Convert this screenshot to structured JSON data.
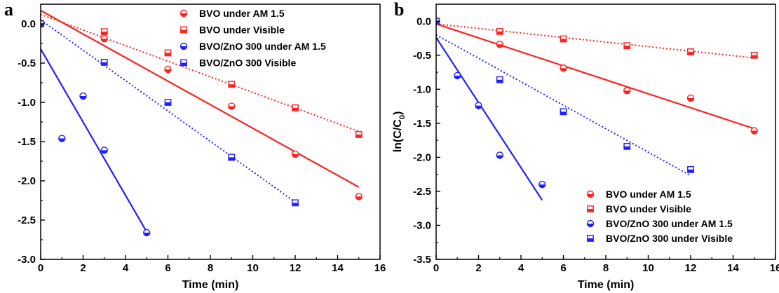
{
  "chart_data": [
    {
      "type": "scatter",
      "panel_label": "a",
      "xlabel": "Time (min)",
      "ylabel": "",
      "xlim": [
        0,
        16
      ],
      "ylim": [
        -3.0,
        0.25
      ],
      "xticks": [
        "0",
        "2",
        "4",
        "6",
        "8",
        "10",
        "12",
        "14",
        "16"
      ],
      "yticks": [
        "0.0",
        "-0.5",
        "-1.0",
        "-1.5",
        "-2.0",
        "-2.5",
        "-3.0"
      ],
      "legend_position": "top-right",
      "series": [
        {
          "name": "BVO under AM 1.5",
          "color": "#ff2020",
          "marker": "circle-half",
          "fit": "solid",
          "x": [
            0,
            3,
            6,
            9,
            12,
            15
          ],
          "y": [
            0.0,
            -0.19,
            -0.58,
            -1.05,
            -1.66,
            -2.2
          ],
          "fit_line": [
            [
              0,
              0.17
            ],
            [
              15,
              -2.08
            ]
          ]
        },
        {
          "name": "BVO under Visible",
          "color": "#ff2020",
          "marker": "square-half",
          "fit": "dotted",
          "x": [
            0,
            3,
            6,
            9,
            12,
            15
          ],
          "y": [
            0.0,
            -0.1,
            -0.37,
            -0.77,
            -1.07,
            -1.41
          ],
          "fit_line": [
            [
              0,
              0.12
            ],
            [
              15,
              -1.37
            ]
          ]
        },
        {
          "name": "BVO/ZnO 300 under AM 1.5",
          "color": "#2020ff",
          "marker": "circle-half",
          "fit": "solid",
          "x": [
            0,
            1,
            2,
            3,
            5
          ],
          "y": [
            0.0,
            -1.46,
            -0.92,
            -1.61,
            -2.66
          ],
          "fit_line": [
            [
              0,
              -0.32
            ],
            [
              5,
              -2.65
            ]
          ]
        },
        {
          "name": "BVO/ZnO 300 Visible",
          "color": "#2020ff",
          "marker": "square-half",
          "fit": "dotted",
          "x": [
            0,
            3,
            6,
            9,
            12
          ],
          "y": [
            0.0,
            -0.49,
            -1.0,
            -1.7,
            -2.28
          ],
          "fit_line": [
            [
              0,
              0.05
            ],
            [
              12,
              -2.27
            ]
          ]
        }
      ]
    },
    {
      "type": "scatter",
      "panel_label": "b",
      "xlabel": "Time (min)",
      "ylabel": "ln(C/C",
      "ylabel_sub": "0",
      "ylabel_end": ")",
      "xlim": [
        0,
        16
      ],
      "ylim": [
        -3.5,
        0.25
      ],
      "xticks": [
        "0",
        "2",
        "4",
        "6",
        "8",
        "10",
        "12",
        "14",
        "16"
      ],
      "yticks": [
        "0.0",
        "-0.5",
        "-1.0",
        "-1.5",
        "-2.0",
        "-2.5",
        "-3.0",
        "-3.5"
      ],
      "legend_position": "bottom-right",
      "series": [
        {
          "name": "BVO under AM 1.5",
          "color": "#ff2020",
          "marker": "circle-half",
          "fit": "solid",
          "x": [
            0,
            3,
            6,
            9,
            12,
            15
          ],
          "y": [
            0.0,
            -0.34,
            -0.69,
            -1.02,
            -1.13,
            -1.61
          ],
          "fit_line": [
            [
              0,
              -0.04
            ],
            [
              15,
              -1.58
            ]
          ]
        },
        {
          "name": "BVO under Visible",
          "color": "#ff2020",
          "marker": "square-half",
          "fit": "dotted",
          "x": [
            0,
            3,
            6,
            9,
            12,
            15
          ],
          "y": [
            0.0,
            -0.15,
            -0.26,
            -0.36,
            -0.45,
            -0.5
          ],
          "fit_line": [
            [
              0,
              -0.04
            ],
            [
              15,
              -0.54
            ]
          ]
        },
        {
          "name": "BVO/ZnO 300 under AM 1.5",
          "color": "#2020ff",
          "marker": "circle-half",
          "fit": "solid",
          "x": [
            0,
            1,
            2,
            3,
            5
          ],
          "y": [
            0.0,
            -0.8,
            -1.24,
            -1.97,
            -2.4
          ],
          "fit_line": [
            [
              0,
              -0.24
            ],
            [
              5,
              -2.63
            ]
          ]
        },
        {
          "name": "BVO/ZnO 300 under Visible",
          "color": "#2020ff",
          "marker": "square-half",
          "fit": "dotted",
          "x": [
            0,
            3,
            6,
            9,
            12
          ],
          "y": [
            0.0,
            -0.86,
            -1.33,
            -1.84,
            -2.18
          ],
          "fit_line": [
            [
              0,
              -0.2
            ],
            [
              12,
              -2.27
            ]
          ]
        }
      ]
    }
  ]
}
